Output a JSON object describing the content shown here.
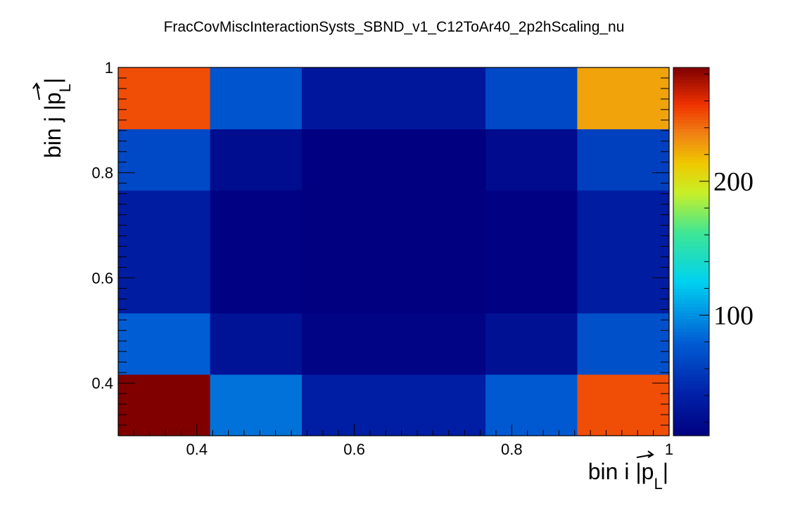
{
  "chart_data": {
    "type": "heatmap",
    "title": "FracCovMiscInteractionSysts_SBND_v1_C12ToAr40_2p2hScaling_nu",
    "xlabel": {
      "prefix": "bin i |",
      "symbol": "p",
      "subscript": "L",
      "suffix": "|"
    },
    "ylabel": {
      "prefix": "bin j |",
      "symbol": "p",
      "subscript": "L",
      "suffix": "|"
    },
    "xlim": [
      0.3,
      1.0
    ],
    "ylim": [
      0.3,
      1.0
    ],
    "x_edges": [
      0.3,
      0.4167,
      0.5333,
      0.65,
      0.7667,
      0.8833,
      1.0
    ],
    "y_edges": [
      0.3,
      0.4167,
      0.5333,
      0.65,
      0.7667,
      0.8833,
      1.0
    ],
    "x_ticks": [
      0.4,
      0.6,
      0.8,
      1
    ],
    "x_tick_labels": [
      "0.4",
      "0.6",
      "0.8",
      "1"
    ],
    "y_ticks": [
      0.4,
      0.6,
      0.8,
      1
    ],
    "y_tick_labels": [
      "0.4",
      "0.6",
      "0.8",
      "1"
    ],
    "z_range": [
      10,
      285
    ],
    "z_ticks": [
      100,
      200
    ],
    "z_tick_labels": [
      "100",
      "200"
    ],
    "colormap": "rainbow (dark blue to dark red)",
    "z_rows_bottom_to_top": [
      [
        285,
        88,
        38,
        38,
        78,
        250
      ],
      [
        80,
        28,
        14,
        14,
        26,
        72
      ],
      [
        36,
        12,
        8,
        8,
        12,
        36
      ],
      [
        36,
        12,
        8,
        8,
        12,
        36
      ],
      [
        68,
        22,
        10,
        10,
        20,
        62
      ],
      [
        250,
        75,
        32,
        32,
        68,
        225
      ]
    ],
    "grid": false,
    "legend": "colorbar right"
  }
}
